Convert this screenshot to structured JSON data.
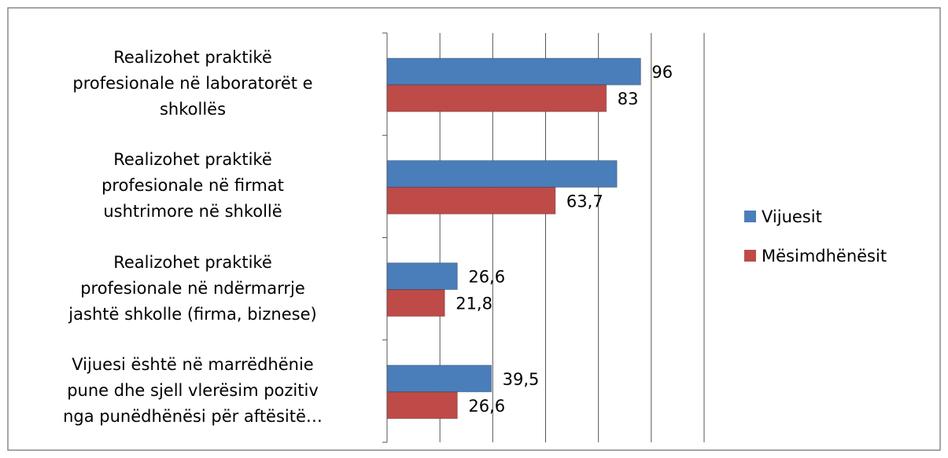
{
  "chart_data": {
    "type": "hbar",
    "categories": [
      "Realizohet praktikë\nprofesionale në laboratorët e\nshkollës",
      "Realizohet  praktikë\nprofesionale në firmat\nushtrimore në shkollë",
      "Realizohet  praktikë\nprofesionale në ndërmarrje\njashtë shkolle (firma, biznese)",
      "Vijuesi është  në marrëdhënie\npune dhe sjell vlerësim pozitiv\nnga punëdhënësi  për aftësitë…"
    ],
    "series": [
      {
        "name": "Vijuesit",
        "color": "#4a7ebb",
        "values": [
          96,
          87,
          26.6,
          39.5
        ],
        "value_labels": [
          "96",
          null,
          "26,6",
          "39,5"
        ]
      },
      {
        "name": "Mësimdhënësit",
        "color": "#be4b48",
        "values": [
          83,
          63.7,
          21.8,
          26.6
        ],
        "value_labels": [
          "83",
          "63,7",
          "21,8",
          "26,6"
        ]
      }
    ],
    "xlim": [
      0,
      120
    ],
    "xticks": [
      0,
      20,
      40,
      60,
      80,
      100,
      120
    ],
    "grid": true,
    "legend": "right"
  }
}
